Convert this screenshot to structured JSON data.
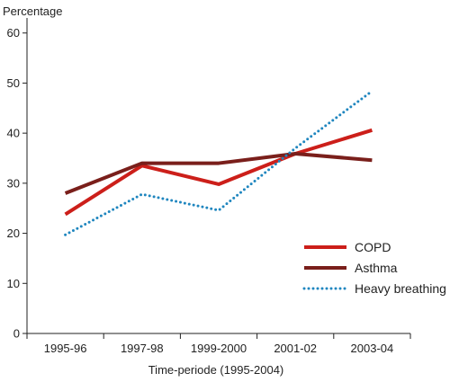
{
  "chart_data": {
    "type": "line",
    "ylabel": "Percentage",
    "xlabel": "Time-periode (1995-2004)",
    "categories": [
      "1995-96",
      "1997-98",
      "1999-2000",
      "2001-02",
      "2003-04"
    ],
    "yticks": [
      0,
      10,
      20,
      30,
      40,
      50,
      60
    ],
    "ylim": [
      0,
      63
    ],
    "grid": false,
    "legend_position": "bottom-right",
    "series": [
      {
        "name": "COPD",
        "values": [
          23.8,
          33.5,
          29.8,
          35.9,
          40.6
        ],
        "color": "#cc1f1a",
        "style": "solid"
      },
      {
        "name": "Asthma",
        "values": [
          28.0,
          34.0,
          34.0,
          35.9,
          34.6
        ],
        "color": "#7a1f1b",
        "style": "solid"
      },
      {
        "name": "Heavy breathing",
        "values": [
          19.7,
          27.8,
          24.6,
          37.0,
          48.4
        ],
        "color": "#1f86bf",
        "style": "dotted"
      }
    ]
  }
}
